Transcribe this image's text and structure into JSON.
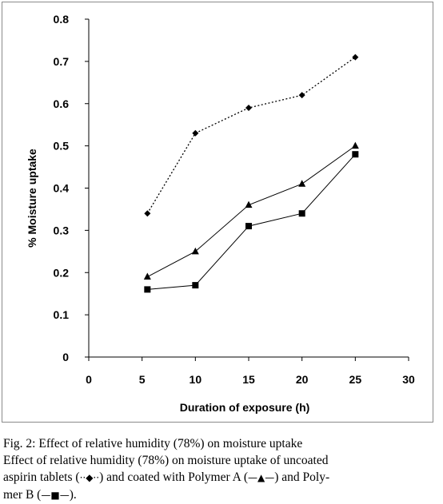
{
  "chart_data": {
    "type": "line",
    "title": "",
    "xlabel": "Duration of exposure (h)",
    "ylabel": "% Moisture uptake",
    "xlim": [
      0,
      30
    ],
    "ylim": [
      0,
      0.8
    ],
    "xticks": [
      0,
      5,
      10,
      15,
      20,
      25,
      30
    ],
    "yticks": [
      0,
      0.1,
      0.2,
      0.3,
      0.4,
      0.5,
      0.6,
      0.7,
      0.8
    ],
    "xtick_labels": [
      "0",
      "5",
      "10",
      "15",
      "20",
      "25",
      "30"
    ],
    "ytick_labels": [
      "0",
      "0.1",
      "0.2",
      "0.3",
      "0.4",
      "0.5",
      "0.6",
      "0.7",
      "0.8"
    ],
    "grid": false,
    "legend": "none",
    "series": [
      {
        "marker": "diamond",
        "line": "dotted",
        "color": "#000000",
        "x": [
          5.5,
          10,
          15,
          20,
          25
        ],
        "y": [
          0.34,
          0.53,
          0.59,
          0.62,
          0.71
        ]
      },
      {
        "marker": "triangle",
        "line": "solid",
        "color": "#000000",
        "x": [
          5.5,
          10,
          15,
          20,
          25
        ],
        "y": [
          0.19,
          0.25,
          0.36,
          0.41,
          0.5
        ]
      },
      {
        "marker": "square",
        "line": "solid",
        "color": "#000000",
        "x": [
          5.5,
          10,
          15,
          20,
          25
        ],
        "y": [
          0.16,
          0.17,
          0.31,
          0.34,
          0.48
        ]
      }
    ]
  },
  "caption": {
    "line1": "Fig. 2: Effect of relative humidity (78%) on moisture uptake",
    "line2": "Effect of relative humidity (78%) on moisture uptake of uncoated",
    "line3a": "aspirin tablets (",
    "sym_uncoated": "··◆··",
    "line3b": ") and coated with Polymer A (",
    "sym_a": "—▲—",
    "line3c": ") and Poly-",
    "line4a": "mer B (",
    "sym_b": "—■—",
    "line4b": ")."
  }
}
